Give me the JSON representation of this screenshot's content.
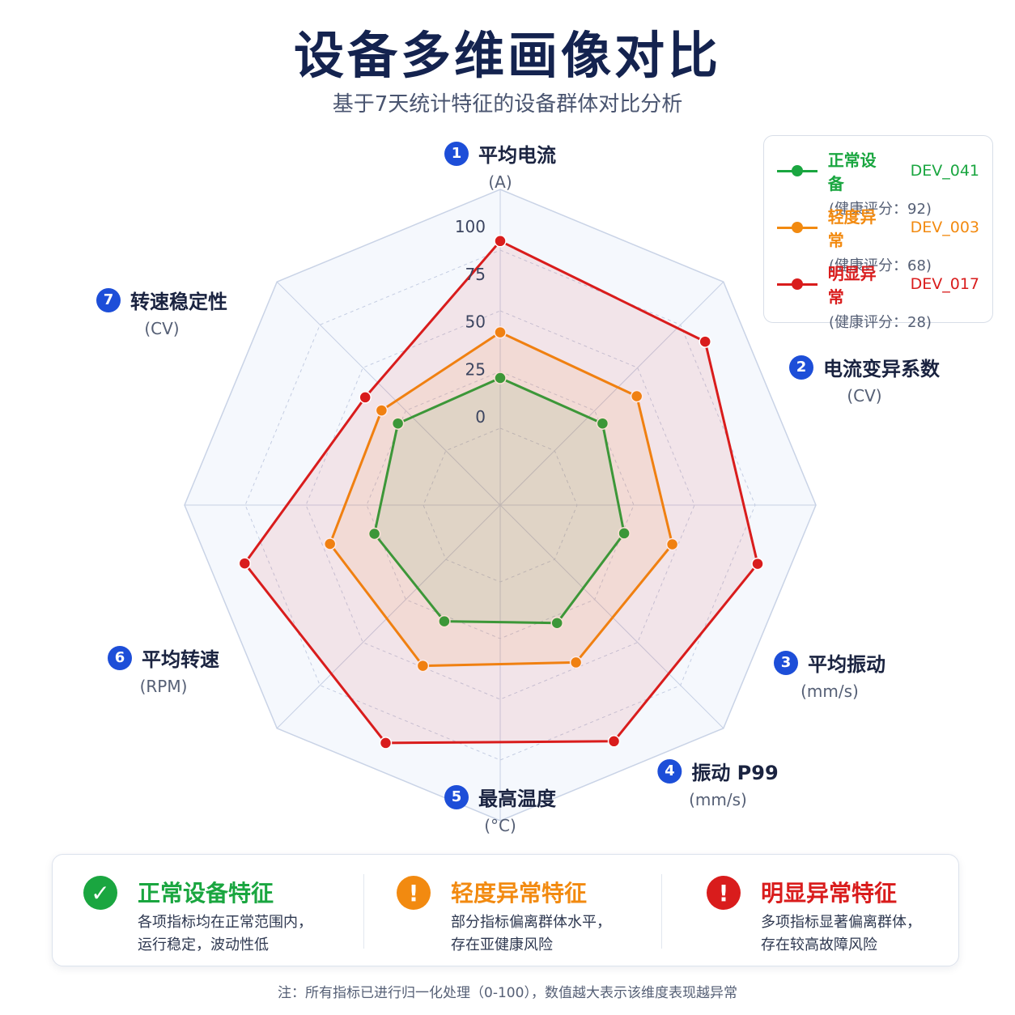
{
  "header": {
    "title": "设备多维画像对比",
    "subtitle": "基于7天统计特征的设备群体对比分析"
  },
  "chart_data": {
    "type": "radar",
    "axes": [
      {
        "index": "1",
        "name": "平均电流",
        "unit": "(A)"
      },
      {
        "index": "2",
        "name": "电流变异系数",
        "unit": "(CV)"
      },
      {
        "index": "3",
        "name": "平均振动",
        "unit": "(mm/s)"
      },
      {
        "index": "4",
        "name": "振动 P99",
        "unit": "(mm/s)"
      },
      {
        "index": "5",
        "name": "最高温度",
        "unit": "(°C)"
      },
      {
        "index": "6",
        "name": "平均转速",
        "unit": "(RPM)"
      },
      {
        "index": "7",
        "name": "转速稳定性",
        "unit": "(CV)"
      }
    ],
    "range": [
      0,
      100
    ],
    "tick_labels": [
      "0",
      "25",
      "50",
      "75",
      "100"
    ],
    "series": [
      {
        "name": "正常设备",
        "id": "DEV_041",
        "score_label": "(健康评分：92)",
        "color": "#1aa640",
        "values": [
          20,
          22,
          20,
          22,
          21,
          21,
          22
        ]
      },
      {
        "name": "轻度异常",
        "id": "DEV_003",
        "score_label": "(健康评分：68)",
        "color": "#f28a10",
        "values": [
          44,
          45,
          46,
          45,
          47,
          45,
          33
        ]
      },
      {
        "name": "明显异常",
        "id": "DEV_017",
        "score_label": "(健康评分：28)",
        "color": "#d91c1c",
        "values": [
          92,
          91,
          92,
          91,
          92,
          91,
          44
        ]
      }
    ],
    "legend_position": "top-right",
    "grid": true
  },
  "summary": [
    {
      "icon": "check-circle-icon",
      "color": "#1aa640",
      "title": "正常设备特征",
      "line1": "各项指标均在正常范围内，",
      "line2": "运行稳定，波动性低"
    },
    {
      "icon": "exclamation-circle-icon",
      "color": "#f28a10",
      "title": "轻度异常特征",
      "line1": "部分指标偏离群体水平，",
      "line2": "存在亚健康风险"
    },
    {
      "icon": "exclamation-circle-icon",
      "color": "#d91c1c",
      "title": "明显异常特征",
      "line1": "多项指标显著偏离群体，",
      "line2": "存在较高故障风险"
    }
  ],
  "footnote": "注：所有指标已进行归一化处理（0-100），数值越大表示该维度表现越异常"
}
